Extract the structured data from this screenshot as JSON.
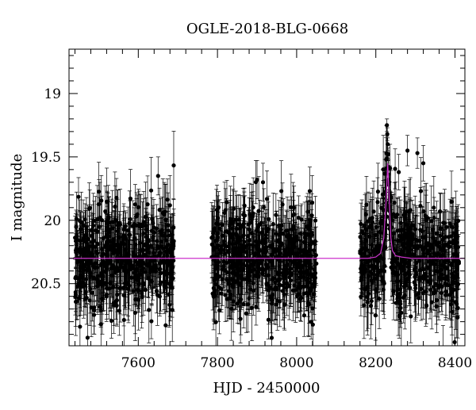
{
  "chart_data": {
    "type": "scatter",
    "title": "OGLE-2018-BLG-0668",
    "xlabel": "HJD - 2450000",
    "ylabel": "I magnitude",
    "xlim": [
      7425,
      8425
    ],
    "ylim": [
      20.99,
      18.65
    ],
    "y_inverted": true,
    "x_ticks": [
      7600,
      7800,
      8000,
      8200,
      8400
    ],
    "y_ticks": [
      19,
      19.5,
      20,
      20.5
    ],
    "x_minor_step": 40,
    "y_minor_step": 0.1,
    "grid": false,
    "colors": {
      "points": "#000000",
      "model": "#cc33cc",
      "axes": "#000000"
    },
    "observing_seasons": [
      {
        "x_start": 7440,
        "x_end": 7690,
        "base_mag": 20.3,
        "scatter": 0.2
      },
      {
        "x_start": 7785,
        "x_end": 8050,
        "base_mag": 20.3,
        "scatter": 0.2
      },
      {
        "x_start": 8160,
        "x_end": 8410,
        "base_mag": 20.3,
        "scatter": 0.2
      }
    ],
    "series": [
      {
        "type": "line",
        "x": [
          7425,
          8180,
          8200,
          8212,
          8220,
          8226,
          8230,
          8234,
          8238,
          8242,
          8250,
          8265,
          8290,
          8425
        ],
        "y": [
          20.3,
          20.3,
          20.29,
          20.26,
          20.14,
          19.85,
          19.55,
          19.85,
          20.14,
          20.24,
          20.28,
          20.29,
          20.3,
          20.3
        ]
      },
      {
        "type": "scatter_errorbar",
        "points": [
          {
            "x": 8228,
            "y": 19.25,
            "err": 0.05
          },
          {
            "x": 8229,
            "y": 19.32,
            "err": 0.05
          },
          {
            "x": 8230,
            "y": 19.4,
            "err": 0.05
          },
          {
            "x": 8231,
            "y": 19.48,
            "err": 0.05
          },
          {
            "x": 8232,
            "y": 19.58,
            "err": 0.06
          },
          {
            "x": 8233,
            "y": 19.7,
            "err": 0.06
          },
          {
            "x": 8226,
            "y": 19.52,
            "err": 0.06
          },
          {
            "x": 8236,
            "y": 19.85,
            "err": 0.08
          },
          {
            "x": 8224,
            "y": 19.78,
            "err": 0.08
          },
          {
            "x": 8280,
            "y": 19.45,
            "err": 0.12
          },
          {
            "x": 8305,
            "y": 19.47,
            "err": 0.12
          },
          {
            "x": 8320,
            "y": 19.55,
            "err": 0.14
          },
          {
            "x": 8258,
            "y": 19.62,
            "err": 0.14
          },
          {
            "x": 7650,
            "y": 19.65,
            "err": 0.15
          },
          {
            "x": 7900,
            "y": 19.68,
            "err": 0.15
          },
          {
            "x": 7915,
            "y": 19.7,
            "err": 0.15
          }
        ]
      }
    ]
  }
}
